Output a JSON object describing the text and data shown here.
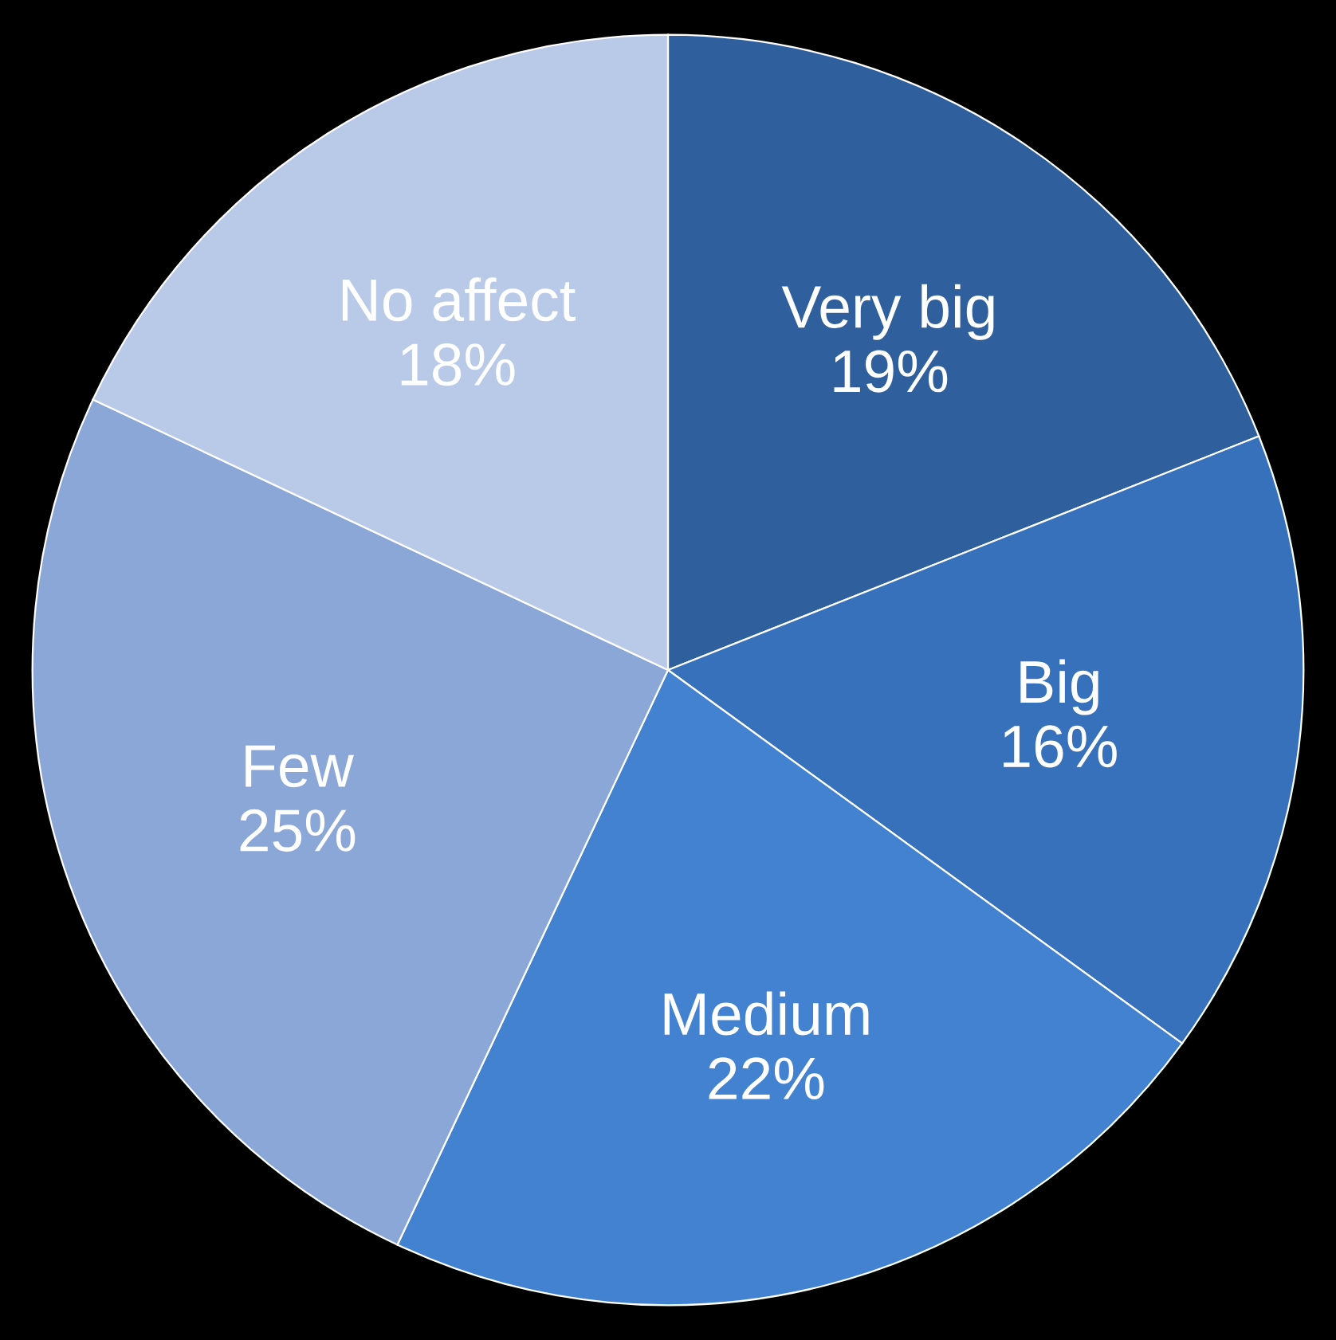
{
  "chart_data": {
    "type": "pie",
    "categories": [
      "Very big",
      "Big",
      "Medium",
      "Few",
      "No affect"
    ],
    "values": [
      19,
      16,
      22,
      25,
      18
    ],
    "value_labels": [
      "19%",
      "16%",
      "22%",
      "25%",
      "18%"
    ],
    "colors": [
      "#2f5f9c",
      "#3871bb",
      "#4282d0",
      "#8ba7d8",
      "#b9c9e8"
    ],
    "legend": false
  }
}
